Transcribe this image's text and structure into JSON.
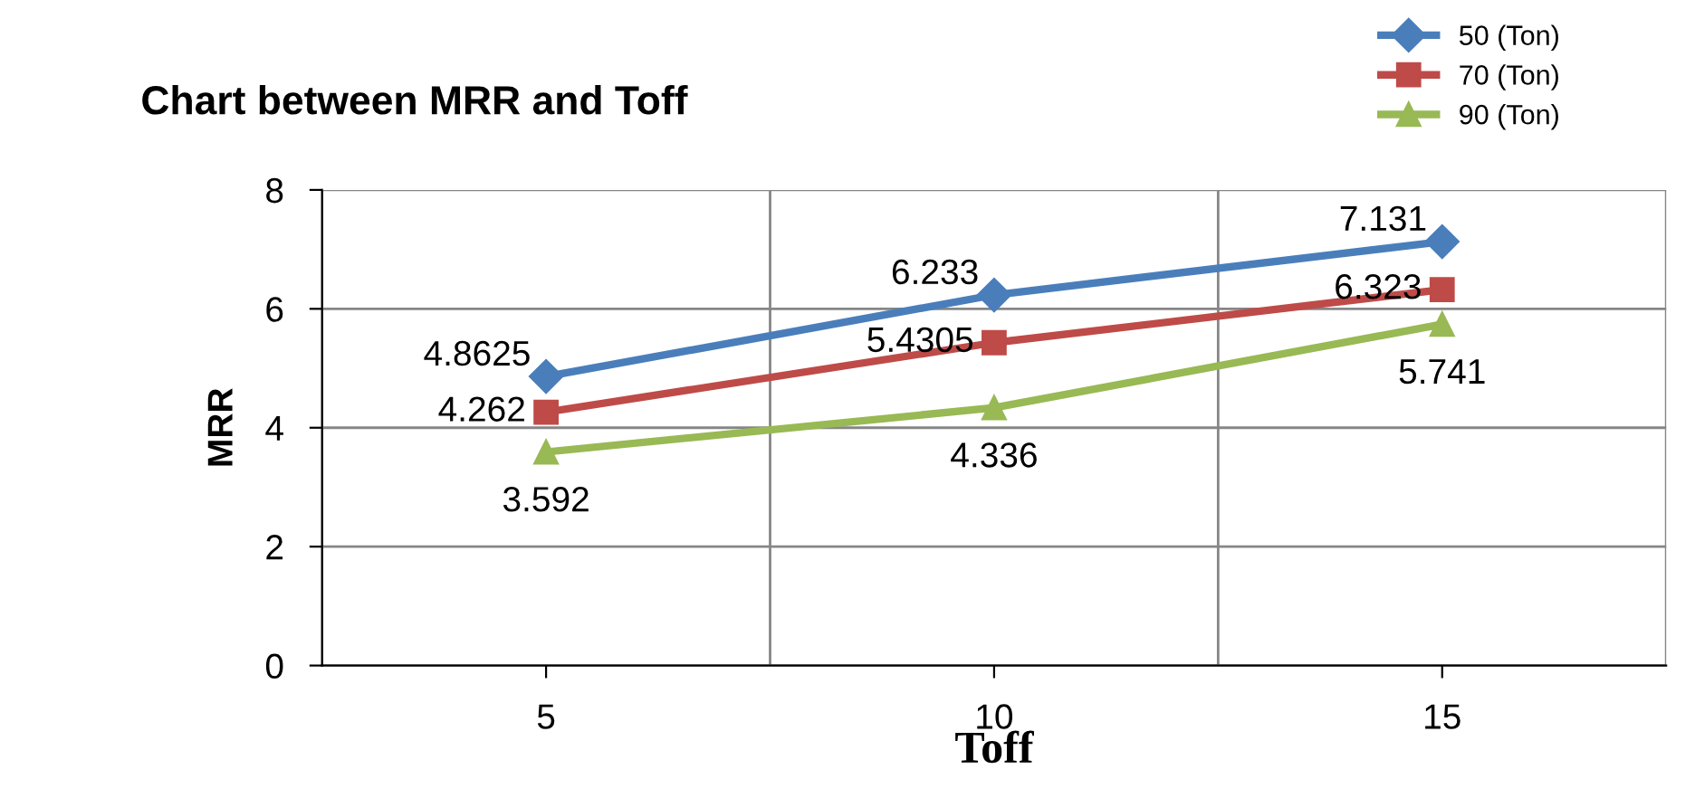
{
  "chart_data": {
    "type": "line",
    "title": "Chart between MRR and Toff",
    "xlabel": "Toff",
    "ylabel": "MRR",
    "categories": [
      "5",
      "10",
      "15"
    ],
    "series": [
      {
        "name": "50 (Ton)",
        "color": "#4a7ebb",
        "marker": "diamond",
        "values": [
          4.8625,
          6.233,
          7.131
        ]
      },
      {
        "name": "70 (Ton)",
        "color": "#be4b48",
        "marker": "square",
        "values": [
          4.262,
          5.4305,
          6.323
        ]
      },
      {
        "name": "90 (Ton)",
        "color": "#98b954",
        "marker": "triangle",
        "values": [
          3.592,
          4.336,
          5.741
        ]
      }
    ],
    "ylim": [
      0,
      8
    ],
    "yticks": [
      0,
      2,
      4,
      6,
      8
    ],
    "grid": true,
    "legend": "top right",
    "data_labels": true
  }
}
